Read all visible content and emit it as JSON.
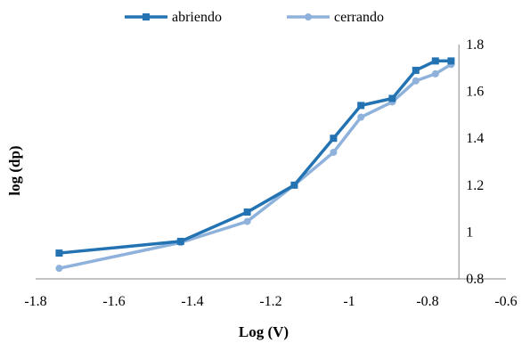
{
  "chart_data": {
    "type": "line",
    "title": "",
    "xlabel": "Log (V)",
    "ylabel": "log (dp)",
    "xlim": [
      -1.8,
      -0.6
    ],
    "ylim": [
      0.8,
      1.8
    ],
    "x_ticks": [
      -1.8,
      -1.6,
      -1.4,
      -1.2,
      -1.0,
      -0.8,
      -0.6
    ],
    "x_tick_labels": [
      "-1.8",
      "-1.6",
      "-1.4",
      "-1.2",
      "-1",
      "-0.8",
      "-0.6"
    ],
    "y_ticks": [
      0.8,
      1.0,
      1.2,
      1.4,
      1.6,
      1.8
    ],
    "y_tick_labels": [
      "0.8",
      "1",
      "1.2",
      "1.4",
      "1.6",
      "1.8"
    ],
    "grid": false,
    "legend_position": "top",
    "series": [
      {
        "name": "abriendo",
        "color": "#2373b3",
        "marker": "square",
        "x": [
          -1.74,
          -1.43,
          -1.26,
          -1.14,
          -1.04,
          -0.97,
          -0.89,
          -0.83,
          -0.78,
          -0.74
        ],
        "y": [
          0.91,
          0.96,
          1.085,
          1.2,
          1.4,
          1.54,
          1.57,
          1.69,
          1.73,
          1.73
        ]
      },
      {
        "name": "cerrando",
        "color": "#8fb2dc",
        "marker": "circle",
        "x": [
          -1.74,
          -1.43,
          -1.26,
          -1.14,
          -1.04,
          -0.97,
          -0.89,
          -0.83,
          -0.78,
          -0.74
        ],
        "y": [
          0.845,
          0.955,
          1.045,
          1.2,
          1.34,
          1.49,
          1.555,
          1.645,
          1.675,
          1.715
        ]
      }
    ]
  }
}
